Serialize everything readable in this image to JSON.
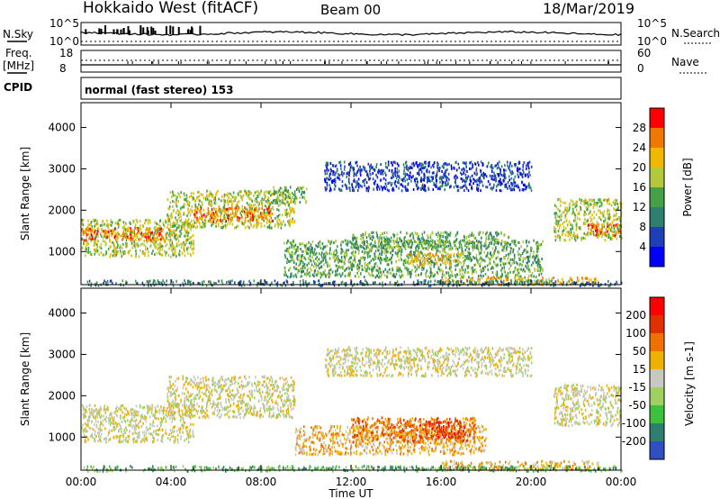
{
  "header": {
    "station": "Hokkaido West (fitACF)",
    "beam": "Beam 00",
    "date": "18/Mar/2019"
  },
  "noise_panel": {
    "left_label": "N.Sky",
    "right_label": "N.Search",
    "left_ticks": [
      "10^5",
      "10^0"
    ],
    "right_ticks": [
      "10^5",
      "10^0"
    ]
  },
  "freq_panel": {
    "left_label_1": "Freq.",
    "left_label_2": "[MHz]",
    "right_label": "Nave",
    "left_ticks": [
      "18",
      "8"
    ],
    "right_ticks": [
      "60",
      "0"
    ],
    "freq_mhz": 10.5,
    "nave": 22
  },
  "cpid_panel": {
    "label": "CPID",
    "text": "normal (fast stereo) 153"
  },
  "chart_data": [
    {
      "type": "heatmap",
      "name": "Power",
      "ylabel": "Slant Range [km]",
      "ylim": [
        200,
        4600
      ],
      "yticks": [
        "1000",
        "2000",
        "3000",
        "4000"
      ],
      "xlim": [
        0,
        24
      ],
      "xticks": [
        "00:00",
        "04:00",
        "08:00",
        "12:00",
        "16:00",
        "20:00",
        "00:00"
      ],
      "colorbar": {
        "label": "Power [dB]",
        "ticks": [
          "28",
          "24",
          "20",
          "16",
          "12",
          "8",
          "4"
        ],
        "colors": [
          "#0000ff",
          "#1f3fb8",
          "#2f7f6f",
          "#46a046",
          "#b4c83c",
          "#f0b800",
          "#f07800",
          "#ff0000"
        ]
      },
      "regions": [
        {
          "t0": 0.0,
          "t1": 5.0,
          "r0": 900,
          "r1": 1800,
          "level": 4
        },
        {
          "t0": 0.0,
          "t1": 4.0,
          "r0": 1300,
          "r1": 1600,
          "level": 6
        },
        {
          "t0": 3.8,
          "t1": 9.5,
          "r0": 1600,
          "r1": 2500,
          "level": 4
        },
        {
          "t0": 5.0,
          "t1": 8.5,
          "r0": 1750,
          "r1": 2100,
          "level": 6
        },
        {
          "t0": 8.5,
          "t1": 10.0,
          "r0": 2200,
          "r1": 2600,
          "level": 3
        },
        {
          "t0": 9.0,
          "t1": 20.5,
          "r0": 400,
          "r1": 1300,
          "level": 3
        },
        {
          "t0": 12.0,
          "t1": 19.0,
          "r0": 1100,
          "r1": 1500,
          "level": 3
        },
        {
          "t0": 14.5,
          "t1": 17.0,
          "r0": 700,
          "r1": 1000,
          "level": 5
        },
        {
          "t0": 16.0,
          "t1": 23.0,
          "r0": 220,
          "r1": 400,
          "level": 5
        },
        {
          "t0": 10.8,
          "t1": 20.0,
          "r0": 2500,
          "r1": 3200,
          "level": 1
        },
        {
          "t0": 21.0,
          "t1": 24.0,
          "r0": 1300,
          "r1": 2300,
          "level": 4
        },
        {
          "t0": 22.5,
          "t1": 24.0,
          "r0": 1400,
          "r1": 1700,
          "level": 6
        },
        {
          "t0": 0.0,
          "t1": 24.0,
          "r0": 200,
          "r1": 330,
          "level": 2
        }
      ]
    },
    {
      "type": "heatmap",
      "name": "Velocity",
      "ylabel": "Slant Range [km]",
      "ylim": [
        200,
        4600
      ],
      "yticks": [
        "1000",
        "2000",
        "3000",
        "4000"
      ],
      "xlim": [
        0,
        24
      ],
      "xticks": [
        "00:00",
        "04:00",
        "08:00",
        "12:00",
        "16:00",
        "20:00",
        "00:00"
      ],
      "xlabel": "Time UT",
      "colorbar": {
        "label": "Velocity [m s-1]",
        "ticks": [
          "200",
          "100",
          "50",
          "15",
          "-15",
          "-50",
          "-100",
          "-200"
        ],
        "colors": [
          "#3050c0",
          "#2f7f6f",
          "#3fbf3f",
          "#a0d060",
          "#c8c8c0",
          "#f0b000",
          "#f07000",
          "#e03000",
          "#ff0000"
        ]
      },
      "regions": [
        {
          "t0": 0.0,
          "t1": 5.0,
          "r0": 900,
          "r1": 1800,
          "level": 4
        },
        {
          "t0": 3.8,
          "t1": 9.5,
          "r0": 1500,
          "r1": 2500,
          "level": 4
        },
        {
          "t0": 9.5,
          "t1": 18.0,
          "r0": 600,
          "r1": 1300,
          "level": 5
        },
        {
          "t0": 12.0,
          "t1": 17.5,
          "r0": 900,
          "r1": 1500,
          "level": 6
        },
        {
          "t0": 15.0,
          "t1": 17.0,
          "r0": 1000,
          "r1": 1400,
          "level": 7
        },
        {
          "t0": 16.0,
          "t1": 23.0,
          "r0": 220,
          "r1": 450,
          "level": 5
        },
        {
          "t0": 10.8,
          "t1": 20.0,
          "r0": 2500,
          "r1": 3200,
          "level": 4
        },
        {
          "t0": 21.0,
          "t1": 24.0,
          "r0": 1300,
          "r1": 2300,
          "level": 4
        },
        {
          "t0": 0.0,
          "t1": 24.0,
          "r0": 200,
          "r1": 330,
          "level": 2
        }
      ]
    }
  ]
}
